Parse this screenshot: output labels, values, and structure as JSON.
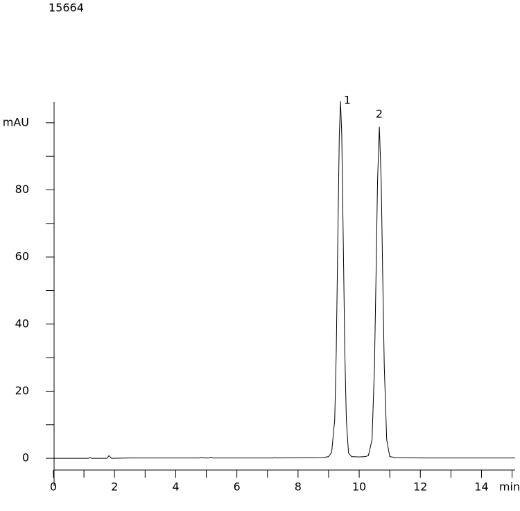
{
  "chart_data": {
    "type": "line",
    "title": "15664",
    "x_label": "min",
    "peak_labels": [
      "1",
      "2"
    ],
    "x": [
      0,
      1,
      1.15,
      1.2,
      1.25,
      1.75,
      1.82,
      1.9,
      2.5,
      4.8,
      4.85,
      4.9,
      5.1,
      5.15,
      5.2,
      7.2,
      7.25,
      7.3,
      8.8,
      9.0,
      9.1,
      9.2,
      9.25,
      9.3,
      9.35,
      9.39,
      9.43,
      9.48,
      9.53,
      9.58,
      9.65,
      9.75,
      10.0,
      10.2,
      10.3,
      10.42,
      10.5,
      10.55,
      10.6,
      10.66,
      10.72,
      10.77,
      10.82,
      10.9,
      11.0,
      11.2,
      12,
      13,
      15.1
    ],
    "values": [
      0,
      0,
      0,
      0.2,
      0,
      0,
      0.8,
      0,
      0.1,
      0.1,
      0.3,
      0.1,
      0.1,
      0.3,
      0.1,
      0.1,
      0.2,
      0.1,
      0.2,
      0.5,
      1.8,
      11.5,
      31.7,
      64.5,
      96.4,
      106.4,
      96.4,
      64.5,
      31.7,
      11.5,
      1.6,
      0.5,
      0.4,
      0.5,
      0.8,
      5.5,
      27.5,
      54,
      82.5,
      98.8,
      82.5,
      54,
      27.5,
      5.5,
      0.5,
      0.2,
      0.1,
      0.1,
      0.1
    ],
    "color": "#000000",
    "xlim": [
      0,
      15.1
    ],
    "xticks": [
      0,
      2,
      4,
      6,
      8,
      10,
      12,
      14
    ],
    "xminorticks": [
      1,
      3,
      5,
      7,
      9,
      11,
      13,
      15
    ],
    "ylim": [
      -3.5,
      107
    ],
    "yticks": [
      0,
      20,
      40,
      60,
      80,
      {
        "value": 100,
        "label": "mAU"
      }
    ],
    "yminorticks": [
      10,
      30,
      50,
      70,
      90
    ]
  }
}
